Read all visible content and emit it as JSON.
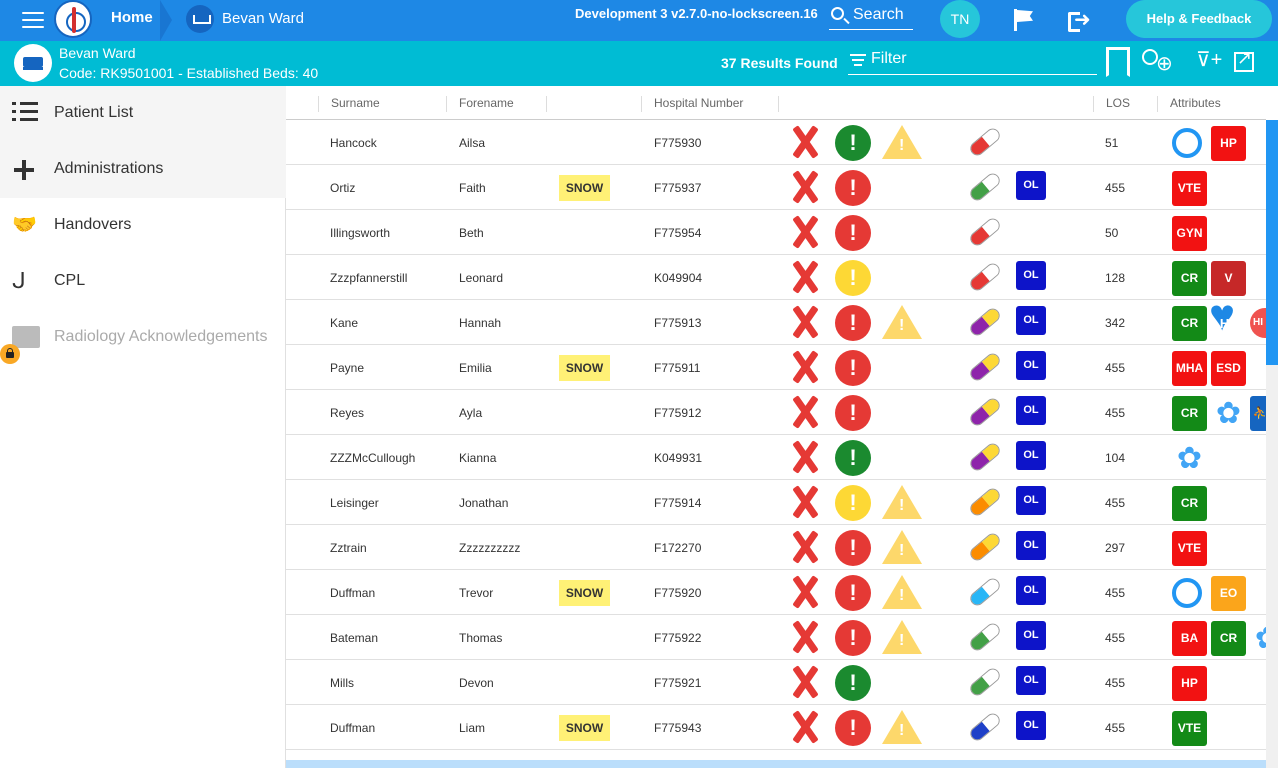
{
  "topbar": {
    "home_label": "Home",
    "ward_label": "Bevan Ward",
    "environment": "Development 3 v2.7.0-no-lockscreen.16",
    "search_label": "Search",
    "user_initials": "TN",
    "help_label": "Help & Feedback"
  },
  "ward": {
    "name": "Bevan Ward",
    "code_line": "Code: RK9501001 - Established Beds: 40",
    "results": "37 Results Found",
    "filter_label": "Filter"
  },
  "sidebar": {
    "items": [
      {
        "label": "Patient List",
        "icon": "list-icon"
      },
      {
        "label": "Administrations",
        "icon": "plus-icon"
      },
      {
        "label": "Handovers",
        "icon": "handshake-icon"
      },
      {
        "label": "CPL",
        "icon": "stethoscope-icon"
      },
      {
        "label": "Radiology Acknowledgements",
        "icon": "radiology-icon",
        "locked": true
      }
    ]
  },
  "table": {
    "headers": {
      "surname": "Surname",
      "forename": "Forename",
      "hospital_number": "Hospital Number",
      "los": "LOS",
      "attributes": "Attributes"
    },
    "snow_label": "SNOW",
    "ol_label": "OL",
    "rows": [
      {
        "surname": "Hancock",
        "forename": "Ailsa",
        "snow": false,
        "hospital_number": "F775930",
        "alert": "green",
        "warning": true,
        "pill": [
          "#e53935",
          "#ffffff"
        ],
        "ol": false,
        "los": "51",
        "attributes": [
          {
            "type": "ring"
          },
          {
            "type": "badge",
            "color": "red",
            "label": "HP"
          }
        ]
      },
      {
        "surname": "Ortiz",
        "forename": "Faith",
        "snow": true,
        "hospital_number": "F775937",
        "alert": "red",
        "warning": false,
        "pill": [
          "#43a047",
          "#ffffff"
        ],
        "ol": true,
        "los": "455",
        "attributes": [
          {
            "type": "badge",
            "color": "red",
            "label": "VTE"
          }
        ]
      },
      {
        "surname": "Illingsworth",
        "forename": "Beth",
        "snow": false,
        "hospital_number": "F775954",
        "alert": "red",
        "warning": false,
        "pill": [
          "#e53935",
          "#ffffff"
        ],
        "ol": false,
        "los": "50",
        "attributes": [
          {
            "type": "badge",
            "color": "red",
            "label": "GYN"
          }
        ]
      },
      {
        "surname": "Zzzpfannerstill",
        "forename": "Leonard",
        "snow": false,
        "hospital_number": "K049904",
        "alert": "yellow",
        "warning": false,
        "pill": [
          "#e53935",
          "#ffffff"
        ],
        "ol": true,
        "los": "128",
        "attributes": [
          {
            "type": "badge",
            "color": "green",
            "label": "CR"
          },
          {
            "type": "badge",
            "color": "darkred",
            "label": "V"
          }
        ]
      },
      {
        "surname": "Kane",
        "forename": "Hannah",
        "snow": false,
        "hospital_number": "F775913",
        "alert": "red",
        "warning": true,
        "pill": [
          "#8e24aa",
          "#fdd835"
        ],
        "ol": true,
        "los": "342",
        "attributes": [
          {
            "type": "badge",
            "color": "green",
            "label": "CR"
          },
          {
            "type": "heart",
            "label": "HF"
          },
          {
            "type": "cut",
            "label": "HI"
          }
        ]
      },
      {
        "surname": "Payne",
        "forename": "Emilia",
        "snow": true,
        "hospital_number": "F775911",
        "alert": "red",
        "warning": false,
        "pill": [
          "#8e24aa",
          "#fdd835"
        ],
        "ol": true,
        "los": "455",
        "attributes": [
          {
            "type": "badge",
            "color": "red",
            "label": "MHA"
          },
          {
            "type": "badge",
            "color": "red",
            "label": "ESD"
          }
        ]
      },
      {
        "surname": "Reyes",
        "forename": "Ayla",
        "snow": false,
        "hospital_number": "F775912",
        "alert": "red",
        "warning": false,
        "pill": [
          "#8e24aa",
          "#fdd835"
        ],
        "ol": true,
        "los": "455",
        "attributes": [
          {
            "type": "badge",
            "color": "green",
            "label": "CR"
          },
          {
            "type": "flower"
          },
          {
            "type": "person"
          }
        ]
      },
      {
        "surname": "ZZZMcCullough",
        "forename": "Kianna",
        "snow": false,
        "hospital_number": "K049931",
        "alert": "green",
        "warning": false,
        "pill": [
          "#8e24aa",
          "#fdd835"
        ],
        "ol": true,
        "los": "104",
        "attributes": [
          {
            "type": "flower"
          }
        ]
      },
      {
        "surname": "Leisinger",
        "forename": "Jonathan",
        "snow": false,
        "hospital_number": "F775914",
        "alert": "yellow",
        "warning": true,
        "pill": [
          "#fb8c00",
          "#fdd835"
        ],
        "ol": true,
        "los": "455",
        "attributes": [
          {
            "type": "badge",
            "color": "green",
            "label": "CR"
          }
        ]
      },
      {
        "surname": "Zztrain",
        "forename": "Zzzzzzzzzz",
        "snow": false,
        "hospital_number": "F172270",
        "alert": "red",
        "warning": true,
        "pill": [
          "#fb8c00",
          "#fdd835"
        ],
        "ol": true,
        "los": "297",
        "attributes": [
          {
            "type": "badge",
            "color": "red",
            "label": "VTE"
          }
        ]
      },
      {
        "surname": "Duffman",
        "forename": "Trevor",
        "snow": true,
        "hospital_number": "F775920",
        "alert": "red",
        "warning": true,
        "pill": [
          "#29b6f6",
          "#ffffff"
        ],
        "ol": true,
        "los": "455",
        "attributes": [
          {
            "type": "ring"
          },
          {
            "type": "badge",
            "color": "orange",
            "label": "EO"
          }
        ]
      },
      {
        "surname": "Bateman",
        "forename": "Thomas",
        "snow": false,
        "hospital_number": "F775922",
        "alert": "red",
        "warning": true,
        "pill": [
          "#43a047",
          "#ffffff"
        ],
        "ol": true,
        "los": "455",
        "attributes": [
          {
            "type": "badge",
            "color": "red",
            "label": "BA"
          },
          {
            "type": "badge",
            "color": "green",
            "label": "CR"
          },
          {
            "type": "flower"
          }
        ]
      },
      {
        "surname": "Mills",
        "forename": "Devon",
        "snow": false,
        "hospital_number": "F775921",
        "alert": "green",
        "warning": false,
        "pill": [
          "#43a047",
          "#ffffff"
        ],
        "ol": true,
        "los": "455",
        "attributes": [
          {
            "type": "badge",
            "color": "red",
            "label": "HP"
          }
        ]
      },
      {
        "surname": "Duffman",
        "forename": "Liam",
        "snow": true,
        "hospital_number": "F775943",
        "alert": "red",
        "warning": true,
        "pill": [
          "#1e40c8",
          "#ffffff"
        ],
        "ol": true,
        "los": "455",
        "attributes": [
          {
            "type": "badge",
            "color": "green",
            "label": "VTE"
          }
        ]
      }
    ]
  }
}
